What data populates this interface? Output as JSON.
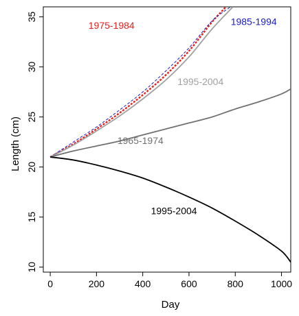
{
  "chart_data": {
    "type": "line",
    "title": "",
    "xlabel": "Day",
    "ylabel": "Length (cm)",
    "xlim": [
      -30,
      1040
    ],
    "ylim": [
      9.5,
      36
    ],
    "x_ticks": [
      0,
      200,
      400,
      600,
      800,
      1000
    ],
    "y_ticks": [
      10,
      15,
      20,
      25,
      30,
      35
    ],
    "grid": false,
    "legend": "none",
    "series": [
      {
        "name": "1975-1984",
        "color": "#e8201c",
        "dash": "dotted",
        "x": [
          0,
          100,
          200,
          300,
          400,
          500,
          600,
          700,
          760
        ],
        "y": [
          21.0,
          22.3,
          23.8,
          25.4,
          27.2,
          29.2,
          31.6,
          34.5,
          36.0
        ]
      },
      {
        "name": "1985-1994",
        "color": "#1a1acc",
        "dash": "dashed",
        "x": [
          0,
          100,
          200,
          300,
          400,
          500,
          600,
          700,
          780
        ],
        "y": [
          21.0,
          22.5,
          24.0,
          25.7,
          27.5,
          29.6,
          31.9,
          34.6,
          36.0
        ]
      },
      {
        "name": "1995-2004",
        "color": "#a0a0a0",
        "dash": "solid",
        "x": [
          0,
          100,
          200,
          300,
          400,
          500,
          600,
          700,
          790
        ],
        "y": [
          21.0,
          22.2,
          23.6,
          25.1,
          26.8,
          28.7,
          31.0,
          33.8,
          36.0
        ]
      },
      {
        "name": "1965-1974",
        "color": "#707070",
        "dash": "solid",
        "x": [
          0,
          100,
          200,
          300,
          400,
          500,
          600,
          700,
          800,
          900,
          1000,
          1040
        ],
        "y": [
          21.0,
          21.6,
          22.1,
          22.6,
          23.2,
          23.8,
          24.4,
          25.0,
          25.8,
          26.5,
          27.3,
          27.8
        ]
      },
      {
        "name": "1995-2004",
        "color": "#000000",
        "dash": "solid",
        "x": [
          0,
          100,
          200,
          300,
          400,
          500,
          600,
          700,
          800,
          900,
          1000,
          1040
        ],
        "y": [
          21.0,
          20.7,
          20.2,
          19.6,
          18.9,
          18.0,
          17.0,
          15.9,
          14.6,
          13.2,
          11.6,
          10.5
        ]
      }
    ],
    "annotations": [
      {
        "text": "1975-1984",
        "color": "#e8201c",
        "x": 265,
        "y": 33.8
      },
      {
        "text": "1985-1994",
        "color": "#1a1acc",
        "x": 880,
        "y": 34.2
      },
      {
        "text": "1995-2004",
        "color": "#a0a0a0",
        "x": 650,
        "y": 28.2
      },
      {
        "text": "1965-1974",
        "color": "#707070",
        "x": 390,
        "y": 22.3
      },
      {
        "text": "1995-2004",
        "color": "#000000",
        "x": 535,
        "y": 15.3
      }
    ]
  }
}
